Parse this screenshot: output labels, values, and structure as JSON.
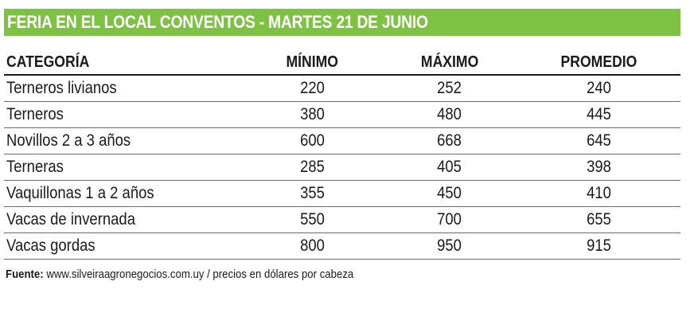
{
  "title": "FERIA EN EL LOCAL CONVENTOS - MARTES 21 DE JUNIO",
  "colors": {
    "title_bar": "#7dc242",
    "title_text": "#ffffff",
    "text": "#1a1a1a"
  },
  "chart_data": {
    "type": "table",
    "title": "FERIA EN EL LOCAL CONVENTOS - MARTES 21 DE JUNIO",
    "columns": [
      "CATEGORÍA",
      "MÍNIMO",
      "MÁXIMO",
      "PROMEDIO"
    ],
    "rows": [
      [
        "Terneros livianos",
        "220",
        "252",
        "240"
      ],
      [
        "Terneros",
        "380",
        "480",
        "445"
      ],
      [
        "Novillos 2 a 3 años",
        "600",
        "668",
        "645"
      ],
      [
        "Terneras",
        "285",
        "405",
        "398"
      ],
      [
        "Vaquillonas 1 a 2 años",
        "355",
        "450",
        "410"
      ],
      [
        "Vacas de invernada",
        "550",
        "700",
        "655"
      ],
      [
        "Vacas gordas",
        "800",
        "950",
        "915"
      ]
    ]
  },
  "source": {
    "label": "Fuente:",
    "text": " www.silveiraagronegocios.com.uy / precios en dólares por cabeza"
  }
}
